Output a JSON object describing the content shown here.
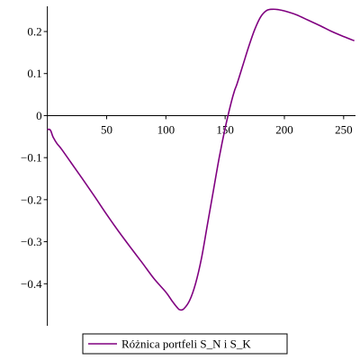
{
  "chart_data": {
    "type": "line",
    "title": "",
    "xlabel": "",
    "ylabel": "",
    "xlim": [
      -2,
      260
    ],
    "ylim": [
      -0.5,
      0.26
    ],
    "x_ticks": [
      50,
      100,
      150,
      200,
      250
    ],
    "y_ticks": [
      -0.4,
      -0.3,
      -0.2,
      -0.1,
      0,
      0.1,
      0.2
    ],
    "x_tick_labels": [
      "50",
      "100",
      "150",
      "200",
      "250"
    ],
    "y_tick_labels": [
      "−0.4",
      "−0.3",
      "−0.2",
      "−0.1",
      "0",
      "0.1",
      "0.2"
    ],
    "grid": false,
    "legend_position": "bottom",
    "series": [
      {
        "name": "Różnica portfeli S_N i S_K",
        "color": "#800080",
        "x": [
          0,
          2,
          3,
          4,
          5,
          8,
          12,
          20,
          30,
          40,
          50,
          60,
          70,
          80,
          90,
          100,
          105,
          110,
          112,
          115,
          120,
          125,
          130,
          135,
          140,
          145,
          150,
          155,
          158,
          160,
          165,
          170,
          175,
          180,
          185,
          190,
          195,
          200,
          210,
          220,
          230,
          240,
          250,
          259
        ],
        "y": [
          -0.033,
          -0.033,
          -0.037,
          -0.045,
          -0.052,
          -0.066,
          -0.08,
          -0.112,
          -0.152,
          -0.193,
          -0.235,
          -0.275,
          -0.313,
          -0.35,
          -0.388,
          -0.42,
          -0.44,
          -0.458,
          -0.462,
          -0.46,
          -0.44,
          -0.4,
          -0.34,
          -0.26,
          -0.18,
          -0.1,
          -0.03,
          0.03,
          0.06,
          0.075,
          0.12,
          0.165,
          0.205,
          0.235,
          0.25,
          0.253,
          0.252,
          0.249,
          0.24,
          0.227,
          0.214,
          0.2,
          0.188,
          0.178
        ]
      }
    ]
  }
}
